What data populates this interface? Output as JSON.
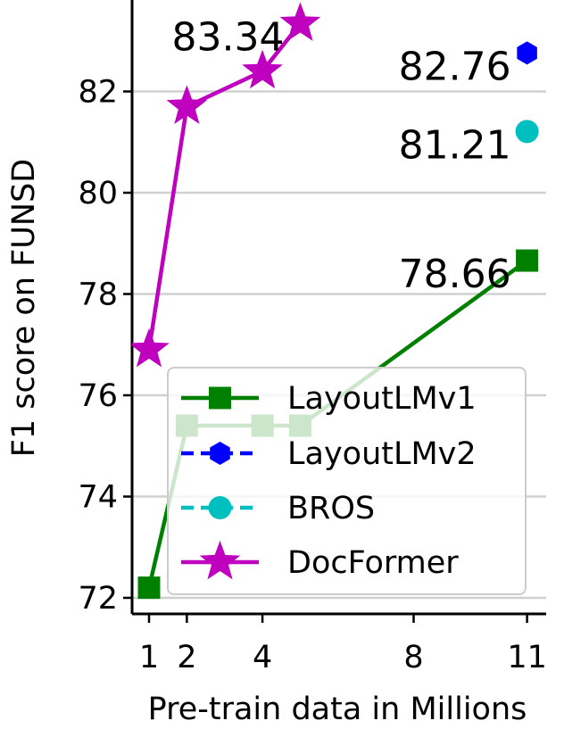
{
  "chart_data": {
    "type": "line",
    "xlabel": "Pre-train data in Millions",
    "ylabel": "F1 score on FUNSD",
    "xlim": [
      0.55,
      11.5
    ],
    "ylim": [
      71.7,
      83.8
    ],
    "xticks": [
      1,
      2,
      4,
      8,
      11
    ],
    "yticks": [
      72,
      74,
      76,
      78,
      80,
      82
    ],
    "grid": "horizontal",
    "legend_position": "lower-right",
    "series": [
      {
        "name": "LayoutLMv1",
        "color": "#008000",
        "marker": "square",
        "linestyle": "solid",
        "x": [
          1,
          2,
          4,
          5,
          11
        ],
        "y": [
          72.2,
          75.4,
          75.4,
          75.4,
          78.66
        ]
      },
      {
        "name": "LayoutLMv2",
        "color": "#0000ff",
        "marker": "hexagon",
        "linestyle": "dashed",
        "x": [
          11
        ],
        "y": [
          82.76
        ]
      },
      {
        "name": "BROS",
        "color": "#00bfbf",
        "marker": "circle",
        "linestyle": "dashed",
        "x": [
          11
        ],
        "y": [
          81.21
        ]
      },
      {
        "name": "DocFormer",
        "color": "#bf00bf",
        "marker": "star",
        "linestyle": "solid",
        "x": [
          1,
          2,
          4,
          5
        ],
        "y": [
          76.9,
          81.7,
          82.4,
          83.34
        ]
      }
    ],
    "annotations": [
      {
        "text": "83.34",
        "x": 5,
        "y": 83.34
      },
      {
        "text": "82.76",
        "x": 11,
        "y": 82.76
      },
      {
        "text": "81.21",
        "x": 11,
        "y": 81.21
      },
      {
        "text": "78.66",
        "x": 11,
        "y": 78.66
      }
    ]
  }
}
